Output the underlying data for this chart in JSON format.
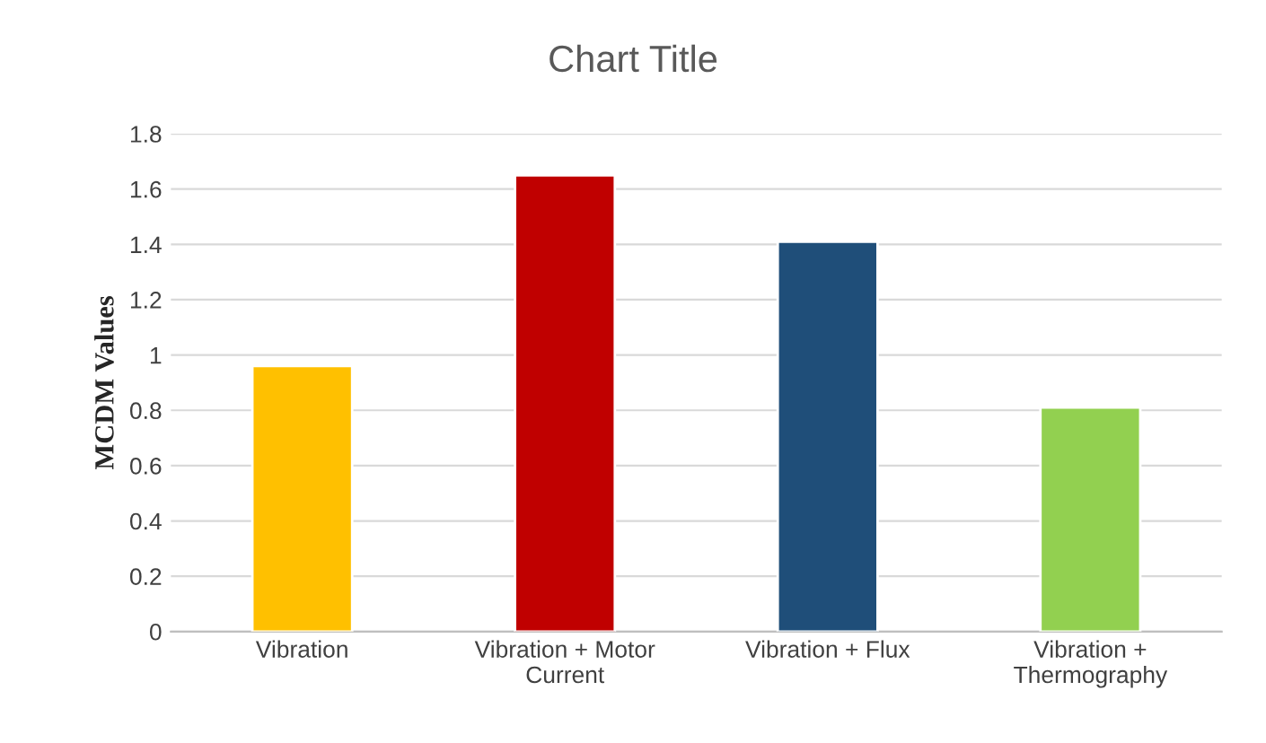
{
  "chart_data": {
    "type": "bar",
    "title": "Chart Title",
    "ylabel": "MCDM Values",
    "categories": [
      "Vibration",
      "Vibration + Motor\nCurrent",
      "Vibration + Flux",
      "Vibration +\nThermography"
    ],
    "values": [
      0.96,
      1.65,
      1.41,
      0.81
    ],
    "colors": [
      "#ffc000",
      "#c00000",
      "#1f4e79",
      "#92d050"
    ],
    "ylim": [
      0,
      1.8
    ],
    "yticks": [
      0,
      0.2,
      0.4,
      0.6,
      0.8,
      1,
      1.2,
      1.4,
      1.6,
      1.8
    ],
    "grid": "y",
    "legend": false
  }
}
